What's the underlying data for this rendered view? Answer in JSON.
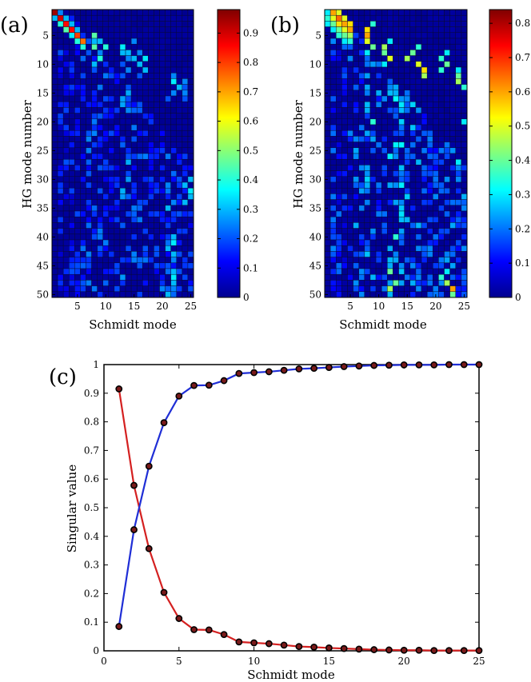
{
  "chart_data": [
    {
      "id": "a",
      "type": "heatmap",
      "panel_label": "(a)",
      "xlabel": "Schmidt mode",
      "ylabel": "HG mode number",
      "x_ticks": [
        5,
        10,
        15,
        20,
        25
      ],
      "y_ticks": [
        5,
        10,
        15,
        20,
        25,
        30,
        35,
        40,
        45,
        50
      ],
      "n_cols": 25,
      "n_rows": 50,
      "colorbar": {
        "min": 0,
        "max": 0.98,
        "ticks": [
          0,
          0.1,
          0.2,
          0.3,
          0.4,
          0.5,
          0.6,
          0.7,
          0.8,
          0.9
        ]
      },
      "cells": [
        [
          1,
          1,
          0.95
        ],
        [
          2,
          2,
          0.9
        ],
        [
          3,
          3,
          0.85
        ],
        [
          4,
          4,
          0.85
        ],
        [
          5,
          5,
          0.8
        ],
        [
          2,
          1,
          0.3
        ],
        [
          3,
          2,
          0.4
        ],
        [
          4,
          3,
          0.45
        ],
        [
          5,
          4,
          0.35
        ],
        [
          6,
          5,
          0.4
        ],
        [
          6,
          6,
          0.75
        ],
        [
          7,
          6,
          0.4
        ],
        [
          1,
          2,
          0.25
        ],
        [
          2,
          3,
          0.3
        ],
        [
          3,
          4,
          0.3
        ],
        [
          4,
          5,
          0.3
        ],
        [
          5,
          8,
          0.45
        ],
        [
          6,
          8,
          0.3
        ],
        [
          7,
          8,
          0.45
        ],
        [
          8,
          7,
          0.2
        ],
        [
          9,
          9,
          0.4
        ],
        [
          6,
          9,
          0.3
        ],
        [
          7,
          10,
          0.4
        ],
        [
          8,
          9,
          0.25
        ],
        [
          10,
          8,
          0.3
        ],
        [
          7,
          13,
          0.35
        ],
        [
          8,
          14,
          0.3
        ],
        [
          6,
          15,
          0.25
        ],
        [
          9,
          15,
          0.3
        ],
        [
          11,
          14,
          0.25
        ],
        [
          12,
          13,
          0.2
        ],
        [
          8,
          13,
          0.3
        ],
        [
          9,
          14,
          0.25
        ],
        [
          10,
          13,
          0.2
        ],
        [
          9,
          17,
          0.35
        ],
        [
          10,
          16,
          0.3
        ],
        [
          11,
          17,
          0.3
        ],
        [
          8,
          16,
          0.25
        ],
        [
          12,
          16,
          0.2
        ],
        [
          13,
          22,
          0.35
        ],
        [
          14,
          23,
          0.3
        ],
        [
          15,
          22,
          0.25
        ],
        [
          16,
          21,
          0.2
        ],
        [
          12,
          22,
          0.25
        ],
        [
          14,
          24,
          0.2
        ],
        [
          15,
          24,
          0.25
        ],
        [
          13,
          24,
          0.25
        ],
        [
          16,
          24,
          0.2
        ],
        [
          31,
          24,
          0.3
        ],
        [
          32,
          25,
          0.35
        ],
        [
          33,
          25,
          0.3
        ],
        [
          34,
          24,
          0.3
        ],
        [
          30,
          23,
          0.2
        ],
        [
          30,
          25,
          0.3
        ],
        [
          34,
          22,
          0.25
        ],
        [
          35,
          21,
          0.3
        ],
        [
          36,
          23,
          0.2
        ],
        [
          40,
          22,
          0.3
        ],
        [
          41,
          22,
          0.35
        ],
        [
          42,
          21,
          0.3
        ],
        [
          43,
          22,
          0.3
        ],
        [
          44,
          22,
          0.25
        ],
        [
          45,
          21,
          0.2
        ],
        [
          46,
          22,
          0.3
        ],
        [
          47,
          22,
          0.35
        ],
        [
          48,
          22,
          0.3
        ],
        [
          49,
          20,
          0.25
        ],
        [
          50,
          21,
          0.3
        ],
        [
          49,
          22,
          0.25
        ]
      ],
      "column_bands": [
        [
          2,
          0.06,
          0.2
        ],
        [
          3,
          0.06,
          0.2
        ],
        [
          4,
          0.05,
          0.2
        ],
        [
          5,
          0.08,
          0.2
        ],
        [
          6,
          0.1,
          0.25
        ],
        [
          7,
          0.1,
          0.25
        ],
        [
          8,
          0.12,
          0.25
        ],
        [
          9,
          0.12,
          0.25
        ],
        [
          10,
          0.1,
          0.25
        ],
        [
          11,
          0.08,
          0.2
        ],
        [
          12,
          0.1,
          0.25
        ],
        [
          13,
          0.15,
          0.3
        ],
        [
          14,
          0.15,
          0.3
        ],
        [
          15,
          0.12,
          0.25
        ],
        [
          16,
          0.12,
          0.25
        ],
        [
          17,
          0.12,
          0.25
        ],
        [
          18,
          0.1,
          0.2
        ],
        [
          19,
          0.1,
          0.2
        ],
        [
          20,
          0.1,
          0.2
        ],
        [
          21,
          0.12,
          0.25
        ],
        [
          22,
          0.12,
          0.25
        ],
        [
          23,
          0.1,
          0.2
        ],
        [
          24,
          0.1,
          0.2
        ],
        [
          25,
          0.1,
          0.2
        ]
      ]
    },
    {
      "id": "b",
      "type": "heatmap",
      "panel_label": "(b)",
      "xlabel": "Schmidt mode",
      "ylabel": "HG mode number",
      "x_ticks": [
        5,
        10,
        15,
        20,
        25
      ],
      "y_ticks": [
        5,
        10,
        15,
        20,
        25,
        30,
        35,
        40,
        45,
        50
      ],
      "n_cols": 25,
      "n_rows": 50,
      "colorbar": {
        "min": 0,
        "max": 0.84,
        "ticks": [
          0,
          0.1,
          0.2,
          0.3,
          0.4,
          0.5,
          0.6,
          0.7,
          0.8
        ]
      },
      "cells": [
        [
          1,
          1,
          0.3
        ],
        [
          1,
          2,
          0.6
        ],
        [
          1,
          3,
          0.5
        ],
        [
          2,
          1,
          0.35
        ],
        [
          2,
          2,
          0.5
        ],
        [
          2,
          3,
          0.65
        ],
        [
          2,
          4,
          0.5
        ],
        [
          3,
          1,
          0.3
        ],
        [
          3,
          2,
          0.4
        ],
        [
          3,
          3,
          0.55
        ],
        [
          3,
          4,
          0.6
        ],
        [
          3,
          5,
          0.55
        ],
        [
          4,
          2,
          0.3
        ],
        [
          4,
          3,
          0.4
        ],
        [
          4,
          4,
          0.5
        ],
        [
          4,
          5,
          0.6
        ],
        [
          5,
          3,
          0.35
        ],
        [
          5,
          4,
          0.4
        ],
        [
          5,
          5,
          0.45
        ],
        [
          6,
          4,
          0.3
        ],
        [
          6,
          5,
          0.35
        ],
        [
          4,
          8,
          0.55
        ],
        [
          5,
          8,
          0.6
        ],
        [
          6,
          8,
          0.5
        ],
        [
          3,
          9,
          0.35
        ],
        [
          7,
          9,
          0.4
        ],
        [
          8,
          8,
          0.3
        ],
        [
          7,
          11,
          0.45
        ],
        [
          8,
          11,
          0.4
        ],
        [
          9,
          12,
          0.5
        ],
        [
          6,
          12,
          0.3
        ],
        [
          10,
          11,
          0.3
        ],
        [
          8,
          16,
          0.4
        ],
        [
          9,
          15,
          0.45
        ],
        [
          10,
          17,
          0.5
        ],
        [
          11,
          18,
          0.55
        ],
        [
          12,
          18,
          0.45
        ],
        [
          7,
          17,
          0.35
        ],
        [
          9,
          21,
          0.35
        ],
        [
          10,
          22,
          0.4
        ],
        [
          11,
          21,
          0.35
        ],
        [
          8,
          22,
          0.3
        ],
        [
          12,
          24,
          0.4
        ],
        [
          13,
          24,
          0.45
        ],
        [
          14,
          25,
          0.35
        ],
        [
          11,
          24,
          0.3
        ],
        [
          20,
          25,
          0.3
        ],
        [
          27,
          24,
          0.3
        ],
        [
          33,
          25,
          0.25
        ],
        [
          20,
          9,
          0.35
        ],
        [
          26,
          12,
          0.3
        ],
        [
          40,
          13,
          0.35
        ],
        [
          46,
          12,
          0.4
        ],
        [
          48,
          13,
          0.4
        ],
        [
          49,
          12,
          0.45
        ],
        [
          48,
          22,
          0.45
        ],
        [
          49,
          23,
          0.6
        ],
        [
          50,
          23,
          0.4
        ],
        [
          47,
          21,
          0.35
        ],
        [
          46,
          22,
          0.3
        ]
      ],
      "column_bands": [
        [
          2,
          0.08,
          0.22
        ],
        [
          3,
          0.06,
          0.2
        ],
        [
          4,
          0.06,
          0.2
        ],
        [
          5,
          0.08,
          0.22
        ],
        [
          6,
          0.1,
          0.25
        ],
        [
          7,
          0.1,
          0.25
        ],
        [
          8,
          0.12,
          0.28
        ],
        [
          9,
          0.12,
          0.28
        ],
        [
          10,
          0.1,
          0.25
        ],
        [
          11,
          0.1,
          0.22
        ],
        [
          12,
          0.12,
          0.28
        ],
        [
          13,
          0.15,
          0.32
        ],
        [
          14,
          0.15,
          0.32
        ],
        [
          15,
          0.12,
          0.28
        ],
        [
          16,
          0.12,
          0.28
        ],
        [
          17,
          0.12,
          0.28
        ],
        [
          18,
          0.1,
          0.22
        ],
        [
          19,
          0.1,
          0.22
        ],
        [
          20,
          0.1,
          0.22
        ],
        [
          21,
          0.12,
          0.25
        ],
        [
          22,
          0.12,
          0.25
        ],
        [
          23,
          0.12,
          0.25
        ],
        [
          24,
          0.1,
          0.22
        ],
        [
          25,
          0.1,
          0.22
        ]
      ]
    },
    {
      "id": "c",
      "type": "line",
      "panel_label": "(c)",
      "xlabel": "Schmidt mode",
      "ylabel": "Singular value",
      "xlim": [
        0,
        25
      ],
      "ylim": [
        0,
        1
      ],
      "x_ticks": [
        0,
        5,
        10,
        15,
        20,
        25
      ],
      "y_ticks": [
        0,
        0.1,
        0.2,
        0.3,
        0.4,
        0.5,
        0.6,
        0.7,
        0.8,
        0.9,
        1
      ],
      "x": [
        1,
        2,
        3,
        4,
        5,
        6,
        7,
        8,
        9,
        10,
        11,
        12,
        13,
        14,
        15,
        16,
        17,
        18,
        19,
        20,
        21,
        22,
        23,
        24,
        25
      ],
      "series": [
        {
          "color": "#d42020",
          "values": [
            0.915,
            0.578,
            0.357,
            0.204,
            0.113,
            0.074,
            0.073,
            0.057,
            0.031,
            0.028,
            0.025,
            0.02,
            0.015,
            0.013,
            0.01,
            0.008,
            0.006,
            0.004,
            0.003,
            0.002,
            0.002,
            0.001,
            0.001,
            0.001,
            0.001
          ]
        },
        {
          "color": "#1f2ed6",
          "values": [
            0.085,
            0.423,
            0.645,
            0.797,
            0.89,
            0.927,
            0.928,
            0.944,
            0.969,
            0.972,
            0.975,
            0.98,
            0.985,
            0.987,
            0.99,
            0.993,
            0.995,
            0.997,
            0.998,
            0.999,
            0.999,
            0.999,
            1.0,
            1.0,
            1.0
          ]
        }
      ]
    }
  ]
}
